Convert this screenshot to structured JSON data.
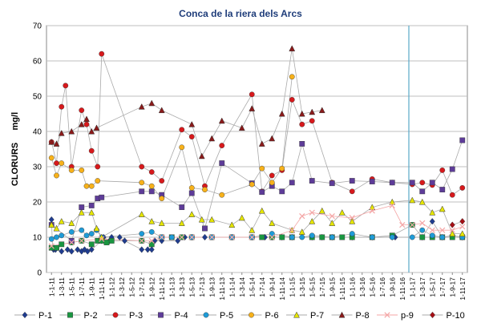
{
  "chart_data": {
    "type": "line",
    "title": "Conca de la riera dels Arcs",
    "ylabel": "CLORURS     mg/l",
    "xlabel": "",
    "ylim": [
      0,
      70
    ],
    "yticks": [
      0,
      10,
      20,
      30,
      40,
      50,
      60,
      70
    ],
    "grid": "horizontal",
    "legend_position": "bottom",
    "reference_line": {
      "x": "1-1-17",
      "color": "#5aa9c9"
    },
    "x_tick_labels": [
      "1-1-11",
      "1-3-11",
      "1-5-11",
      "1-7-11",
      "1-9-11",
      "1-11-11",
      "1-1-12",
      "1-3-12",
      "1-5-12",
      "1-7-12",
      "1-9-12",
      "1-11-12",
      "1-1-13",
      "1-3-13",
      "1-5-13",
      "1-7-13",
      "1-9-13",
      "1-11-13",
      "1-1-14",
      "1-3-14",
      "1-5-14",
      "1-7-14",
      "1-9-14",
      "1-11-14",
      "1-1-15",
      "1-3-15",
      "1-5-15",
      "1-7-15",
      "1-9-15",
      "1-11-15",
      "1-1-16",
      "1-3-16",
      "1-5-16",
      "1-7-16",
      "1-9-16",
      "1-11-16",
      "1-1-17",
      "1-3-17",
      "1-5-17",
      "1-7-17",
      "1-9-17",
      "1-11-17"
    ],
    "series": [
      {
        "name": "P-1",
        "color": "#1f3c8f",
        "marker": "diamond",
        "line": "#aaaaaa",
        "points": [
          [
            0,
            15
          ],
          [
            0.1,
            7
          ],
          [
            0.2,
            6.5
          ],
          [
            0.4,
            6.5
          ],
          [
            1,
            6
          ],
          [
            1.6,
            6.5
          ],
          [
            2,
            6
          ],
          [
            2.6,
            6.5
          ],
          [
            3,
            6
          ],
          [
            3.3,
            6.5
          ],
          [
            3.6,
            6
          ],
          [
            4,
            6.5
          ],
          [
            5,
            9
          ],
          [
            5.2,
            10
          ],
          [
            5.8,
            9
          ],
          [
            6,
            10
          ],
          [
            6.8,
            10
          ],
          [
            7.3,
            9
          ],
          [
            9,
            6.5
          ],
          [
            9.6,
            6.5
          ],
          [
            10,
            6.5
          ],
          [
            10.3,
            9
          ],
          [
            11,
            9
          ],
          [
            12.6,
            9
          ],
          [
            13.3,
            10
          ],
          [
            14,
            10
          ],
          [
            15.3,
            10
          ],
          [
            18,
            10
          ],
          [
            20,
            10
          ],
          [
            21.3,
            10
          ],
          [
            22,
            10
          ],
          [
            23,
            10
          ],
          [
            24,
            10
          ],
          [
            26,
            10
          ],
          [
            27,
            10
          ],
          [
            28,
            10
          ],
          [
            30,
            10
          ],
          [
            32,
            10
          ],
          [
            34,
            10
          ],
          [
            34.3,
            10
          ],
          [
            37,
            10
          ],
          [
            38,
            14.5
          ],
          [
            39,
            10
          ],
          [
            40,
            10.5
          ],
          [
            41,
            10
          ]
        ]
      },
      {
        "name": "P-2",
        "color": "#1a9641",
        "marker": "square",
        "line": "#aaaaaa",
        "points": [
          [
            0,
            7
          ],
          [
            0.5,
            7
          ],
          [
            1,
            8
          ],
          [
            2,
            8.5
          ],
          [
            3,
            9
          ],
          [
            4,
            8
          ],
          [
            4.6,
            9
          ],
          [
            5,
            9
          ],
          [
            5.5,
            8.5
          ],
          [
            6,
            9
          ],
          [
            9,
            9
          ],
          [
            10,
            8
          ],
          [
            11,
            10
          ],
          [
            12,
            10
          ],
          [
            13,
            10
          ],
          [
            14,
            10
          ],
          [
            16,
            10
          ],
          [
            18,
            10
          ],
          [
            20,
            10
          ],
          [
            21,
            10
          ],
          [
            22,
            10
          ],
          [
            23,
            10
          ],
          [
            24,
            10
          ],
          [
            26,
            10
          ],
          [
            27,
            10
          ],
          [
            28,
            10
          ],
          [
            29,
            10
          ],
          [
            30,
            10
          ],
          [
            32,
            10
          ],
          [
            34,
            10.5
          ],
          [
            36,
            13.5
          ],
          [
            37,
            10
          ],
          [
            38,
            10
          ],
          [
            39,
            10
          ],
          [
            40,
            10
          ],
          [
            41,
            10
          ]
        ]
      },
      {
        "name": "P-3",
        "color": "#d7191c",
        "marker": "circle",
        "line": "#aaaaaa",
        "points": [
          [
            0,
            37
          ],
          [
            0.5,
            31
          ],
          [
            1,
            47
          ],
          [
            1.4,
            53
          ],
          [
            2,
            30
          ],
          [
            3,
            46
          ],
          [
            3.5,
            42
          ],
          [
            4,
            34.5
          ],
          [
            4.6,
            30
          ],
          [
            5,
            62
          ],
          [
            9,
            30
          ],
          [
            10,
            28.5
          ],
          [
            11,
            26
          ],
          [
            13,
            40.5
          ],
          [
            14,
            38.5
          ],
          [
            15.3,
            24.5
          ],
          [
            17,
            36
          ],
          [
            20,
            50.5
          ],
          [
            21,
            23
          ],
          [
            22,
            27.5
          ],
          [
            23,
            29
          ],
          [
            24,
            49
          ],
          [
            25,
            42
          ],
          [
            26,
            43
          ],
          [
            28,
            25.5
          ],
          [
            30,
            23
          ],
          [
            32,
            26.5
          ],
          [
            34,
            25.5
          ],
          [
            36,
            25
          ],
          [
            37,
            25.5
          ],
          [
            38,
            24.8
          ],
          [
            39,
            29
          ],
          [
            40,
            22
          ],
          [
            41,
            24
          ]
        ]
      },
      {
        "name": "P-4",
        "color": "#5e3c99",
        "marker": "square",
        "line": "#aaaaaa",
        "points": [
          [
            0,
            13.5
          ],
          [
            2,
            9
          ],
          [
            3,
            18.5
          ],
          [
            4,
            19
          ],
          [
            4.6,
            21
          ],
          [
            5,
            21.3
          ],
          [
            9,
            23
          ],
          [
            10,
            23
          ],
          [
            11,
            22
          ],
          [
            13,
            18.5
          ],
          [
            14,
            22.5
          ],
          [
            15.3,
            12.5
          ],
          [
            17,
            31
          ],
          [
            20,
            25.3
          ],
          [
            21,
            22.8
          ],
          [
            22,
            24.5
          ],
          [
            23,
            23
          ],
          [
            24,
            25.5
          ],
          [
            25,
            36.5
          ],
          [
            26,
            26
          ],
          [
            28,
            25.3
          ],
          [
            30,
            26
          ],
          [
            32,
            25.8
          ],
          [
            34,
            25.5
          ],
          [
            36,
            25.5
          ],
          [
            37,
            23
          ],
          [
            38,
            25.5
          ],
          [
            39,
            23.5
          ],
          [
            40,
            29.3
          ],
          [
            41,
            37.5
          ]
        ]
      },
      {
        "name": "P-5",
        "color": "#1e9bd7",
        "marker": "circle",
        "line": "#aaaaaa",
        "points": [
          [
            0,
            9.5
          ],
          [
            0.5,
            10
          ],
          [
            1,
            10.5
          ],
          [
            2,
            11.5
          ],
          [
            3,
            12
          ],
          [
            3.5,
            10.5
          ],
          [
            4,
            11
          ],
          [
            4.5,
            12
          ],
          [
            5,
            10
          ],
          [
            9,
            11
          ],
          [
            10,
            11.5
          ],
          [
            11,
            10
          ],
          [
            12,
            10
          ],
          [
            14,
            10
          ],
          [
            16,
            10
          ],
          [
            18,
            10
          ],
          [
            20,
            10
          ],
          [
            22,
            11
          ],
          [
            24,
            10
          ],
          [
            25,
            10
          ],
          [
            26,
            10.5
          ],
          [
            28,
            10
          ],
          [
            30,
            11
          ],
          [
            32,
            10
          ],
          [
            34,
            10
          ],
          [
            36,
            10
          ],
          [
            37,
            12
          ],
          [
            38,
            10.5
          ],
          [
            39,
            10
          ],
          [
            41,
            10
          ]
        ]
      },
      {
        "name": "P-6",
        "color": "#f7b11a",
        "marker": "circle",
        "line": "#aaaaaa",
        "points": [
          [
            0,
            32.5
          ],
          [
            0.5,
            27.5
          ],
          [
            1,
            31
          ],
          [
            2,
            29
          ],
          [
            3,
            29
          ],
          [
            3.5,
            24.5
          ],
          [
            4,
            24.5
          ],
          [
            4.6,
            26
          ],
          [
            9,
            25.5
          ],
          [
            10,
            24.5
          ],
          [
            11,
            21
          ],
          [
            13,
            35.5
          ],
          [
            14,
            24
          ],
          [
            15.3,
            23.5
          ],
          [
            17,
            22
          ],
          [
            20,
            25
          ],
          [
            21,
            29.5
          ],
          [
            22,
            25.5
          ],
          [
            23,
            29.5
          ],
          [
            24,
            55.5
          ]
        ]
      },
      {
        "name": "P-7",
        "color": "#e6e600",
        "marker": "triangle",
        "line": "#aaaaaa",
        "points": [
          [
            0,
            13.5
          ],
          [
            0.5,
            12.5
          ],
          [
            1,
            14.5
          ],
          [
            2,
            14
          ],
          [
            3,
            17
          ],
          [
            4,
            17
          ],
          [
            4.5,
            12.5
          ],
          [
            5,
            10
          ],
          [
            9,
            16.5
          ],
          [
            10,
            14.5
          ],
          [
            11,
            14
          ],
          [
            13,
            14
          ],
          [
            14,
            16.5
          ],
          [
            15,
            15
          ],
          [
            16,
            15
          ],
          [
            18,
            13.5
          ],
          [
            19,
            15.5
          ],
          [
            20,
            12
          ],
          [
            21,
            17.5
          ],
          [
            22,
            14
          ],
          [
            24,
            12
          ],
          [
            25,
            11.5
          ],
          [
            26,
            14.5
          ],
          [
            27,
            17.5
          ],
          [
            28,
            14
          ],
          [
            29,
            17
          ],
          [
            30,
            14.5
          ],
          [
            32,
            18.5
          ],
          [
            34,
            20
          ],
          [
            36,
            20.5
          ],
          [
            37,
            20
          ],
          [
            38,
            17
          ],
          [
            39,
            18
          ],
          [
            40,
            11
          ],
          [
            41,
            11
          ]
        ]
      },
      {
        "name": "P-8",
        "color": "#8b1a1a",
        "marker": "triangle",
        "line": "#aaaaaa",
        "points": [
          [
            0,
            37
          ],
          [
            0.5,
            36.5
          ],
          [
            1,
            39.5
          ],
          [
            2,
            40
          ],
          [
            3,
            42
          ],
          [
            3.5,
            43.5
          ],
          [
            4,
            40
          ],
          [
            4.5,
            41
          ],
          [
            9,
            47
          ],
          [
            10,
            48
          ],
          [
            11,
            46
          ],
          [
            14,
            42
          ],
          [
            15,
            33
          ],
          [
            16,
            38
          ],
          [
            17,
            43
          ],
          [
            19,
            41
          ],
          [
            20,
            46.5
          ],
          [
            21,
            36.5
          ],
          [
            22,
            38
          ],
          [
            23,
            45
          ],
          [
            24,
            63.5
          ],
          [
            25,
            45
          ],
          [
            26,
            45.5
          ],
          [
            27,
            46
          ]
        ]
      },
      {
        "name": "p-9",
        "color": "#f4a6a6",
        "marker": "x",
        "line": "#f4a6a6",
        "points": [
          [
            0,
            7.5
          ],
          [
            2,
            8.5
          ],
          [
            3,
            9
          ],
          [
            5,
            9.5
          ],
          [
            9,
            9
          ],
          [
            10,
            9
          ],
          [
            11,
            10
          ],
          [
            13,
            10
          ],
          [
            14,
            10
          ],
          [
            16,
            10
          ],
          [
            18,
            10
          ],
          [
            20,
            10
          ],
          [
            22,
            10
          ],
          [
            24,
            12
          ],
          [
            25,
            16
          ],
          [
            26,
            17
          ],
          [
            28,
            16
          ],
          [
            30,
            15.5
          ],
          [
            32,
            17.5
          ],
          [
            34,
            19
          ],
          [
            35,
            13.5
          ],
          [
            36,
            13.5
          ],
          [
            37,
            14
          ],
          [
            38,
            12
          ],
          [
            39,
            12
          ],
          [
            40,
            12
          ],
          [
            41,
            13
          ]
        ]
      },
      {
        "name": "P-10",
        "color": "#a50f15",
        "marker": "diamond",
        "line": "#aaaaaa",
        "points": [
          [
            40,
            13.5
          ],
          [
            41,
            14.5
          ]
        ]
      }
    ]
  }
}
